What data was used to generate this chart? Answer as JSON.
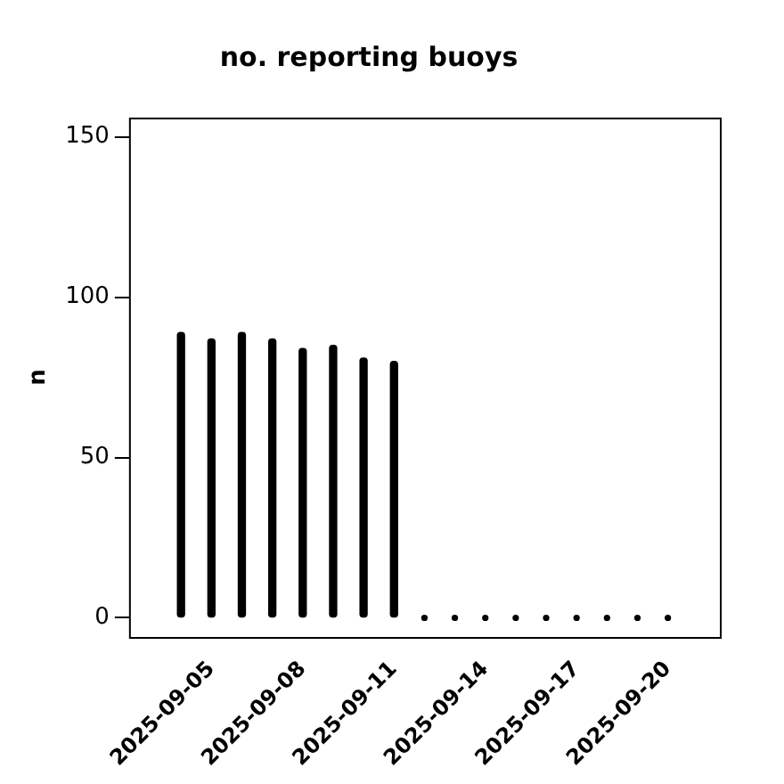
{
  "chart_data": {
    "type": "bar",
    "title": "no. reporting buoys",
    "ylabel": "n",
    "series": [
      {
        "color": "#000000",
        "x": [
          "2025-09-04",
          "2025-09-05",
          "2025-09-06",
          "2025-09-07",
          "2025-09-08",
          "2025-09-09",
          "2025-09-10",
          "2025-09-11"
        ],
        "values": [
          89,
          87,
          89,
          87,
          84,
          85,
          81,
          80
        ]
      },
      {
        "type": "scatter",
        "color": "#000000",
        "marker": "circle",
        "x": [
          "2025-09-12",
          "2025-09-13",
          "2025-09-14",
          "2025-09-15",
          "2025-09-16",
          "2025-09-17",
          "2025-09-18",
          "2025-09-19",
          "2025-09-20"
        ],
        "values": [
          0,
          0,
          0,
          0,
          0,
          0,
          0,
          0,
          0
        ]
      }
    ],
    "xlim": [
      "2025-09-02T07:00",
      "2025-09-21T17:00"
    ],
    "xticks": [
      "2025-09-05",
      "2025-09-08",
      "2025-09-11",
      "2025-09-14",
      "2025-09-17",
      "2025-09-20"
    ],
    "ylim": [
      -6,
      156
    ],
    "yticks": [
      0,
      50,
      100,
      150
    ],
    "grid": false,
    "legend": false
  }
}
